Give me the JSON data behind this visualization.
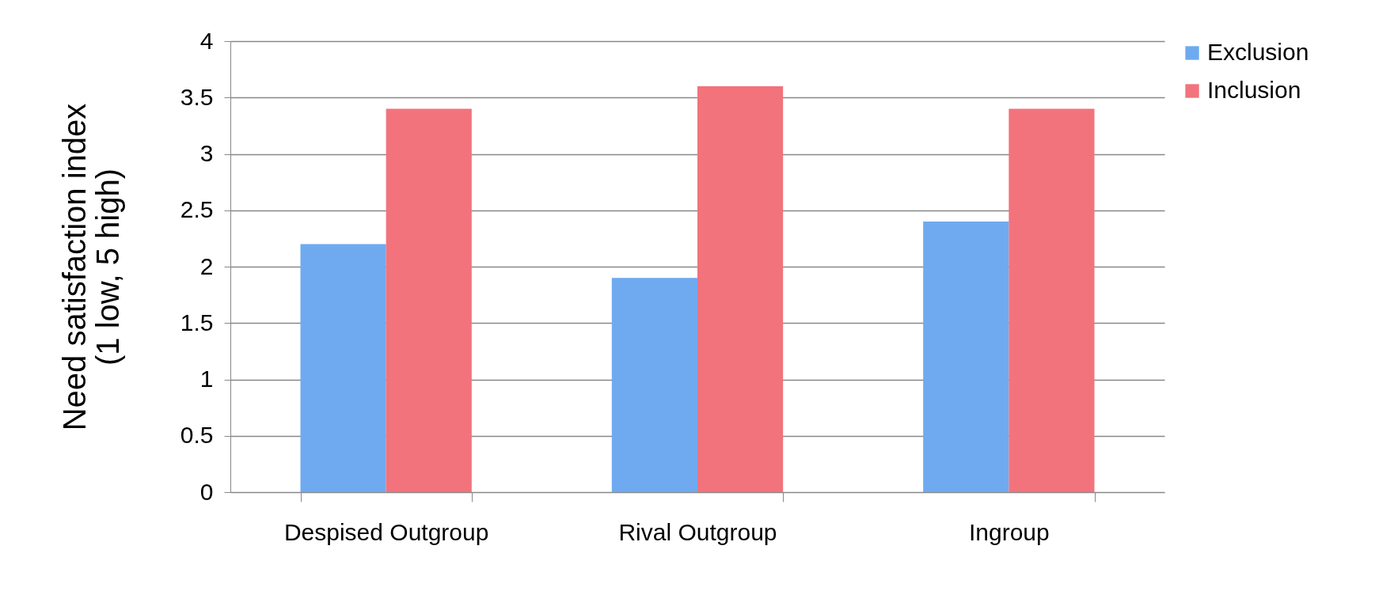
{
  "chart_data": {
    "type": "bar",
    "ylabel": "Need satisfaction index\n(1 low, 5 high)",
    "categories": [
      "Despised Outgroup",
      "Rival Outgroup",
      "Ingroup"
    ],
    "series": [
      {
        "name": "Exclusion",
        "color": "#6faaf0",
        "values": [
          2.2,
          1.9,
          2.4
        ]
      },
      {
        "name": "Inclusion",
        "color": "#f2737c",
        "values": [
          3.4,
          3.6,
          3.4
        ]
      }
    ],
    "ylim": [
      0,
      4
    ],
    "yticks": [
      0,
      0.5,
      1,
      1.5,
      2,
      2.5,
      3,
      3.5,
      4
    ],
    "grid": "y",
    "legend": "right"
  }
}
